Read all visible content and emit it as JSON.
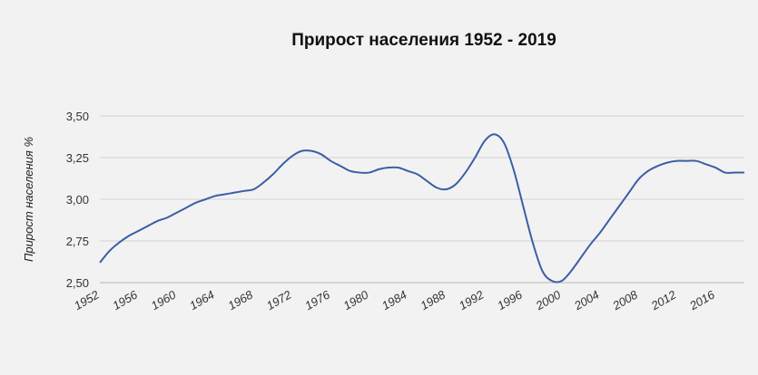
{
  "chart_data": {
    "type": "line",
    "title": "Прирост населения 1952 - 2019",
    "xlabel": "",
    "ylabel": "Прирост населения %",
    "ylim": [
      2.5,
      3.5
    ],
    "xlim": [
      1952,
      2019
    ],
    "yticks": [
      "2,50",
      "2,75",
      "3,00",
      "3,25",
      "3,50"
    ],
    "ytick_values": [
      2.5,
      2.75,
      3.0,
      3.25,
      3.5
    ],
    "xticks": [
      "1952",
      "1956",
      "1960",
      "1964",
      "1968",
      "1972",
      "1976",
      "1980",
      "1984",
      "1988",
      "1992",
      "1996",
      "2000",
      "2004",
      "2008",
      "2012",
      "2016"
    ],
    "xtick_values": [
      1952,
      1956,
      1960,
      1964,
      1968,
      1972,
      1976,
      1980,
      1984,
      1988,
      1992,
      1996,
      2000,
      2004,
      2008,
      2012,
      2016
    ],
    "grid": true,
    "legend": "none",
    "colors": {
      "line": "#3b5ea6",
      "background": "#f2f2f2",
      "grid": "#d3d3d3"
    },
    "series": [
      {
        "x": [
          1952,
          1953,
          1954,
          1955,
          1956,
          1957,
          1958,
          1959,
          1960,
          1961,
          1962,
          1963,
          1964,
          1965,
          1966,
          1967,
          1968,
          1969,
          1970,
          1971,
          1972,
          1973,
          1974,
          1975,
          1976,
          1977,
          1978,
          1979,
          1980,
          1981,
          1982,
          1983,
          1984,
          1985,
          1986,
          1987,
          1988,
          1989,
          1990,
          1991,
          1992,
          1993,
          1994,
          1995,
          1996,
          1997,
          1998,
          1999,
          2000,
          2001,
          2002,
          2003,
          2004,
          2005,
          2006,
          2007,
          2008,
          2009,
          2010,
          2011,
          2012,
          2013,
          2014,
          2015,
          2016,
          2017,
          2018,
          2019
        ],
        "values": [
          2.62,
          2.69,
          2.74,
          2.78,
          2.81,
          2.84,
          2.87,
          2.89,
          2.92,
          2.95,
          2.98,
          3.0,
          3.02,
          3.03,
          3.04,
          3.05,
          3.06,
          3.1,
          3.15,
          3.21,
          3.26,
          3.29,
          3.29,
          3.27,
          3.23,
          3.2,
          3.17,
          3.16,
          3.16,
          3.18,
          3.19,
          3.19,
          3.17,
          3.15,
          3.11,
          3.07,
          3.06,
          3.09,
          3.16,
          3.25,
          3.35,
          3.39,
          3.34,
          3.18,
          2.96,
          2.74,
          2.57,
          2.51,
          2.51,
          2.57,
          2.65,
          2.73,
          2.8,
          2.88,
          2.96,
          3.04,
          3.12,
          3.17,
          3.2,
          3.22,
          3.23,
          3.23,
          3.23,
          3.21,
          3.19,
          3.16,
          3.16,
          3.16
        ]
      }
    ]
  }
}
